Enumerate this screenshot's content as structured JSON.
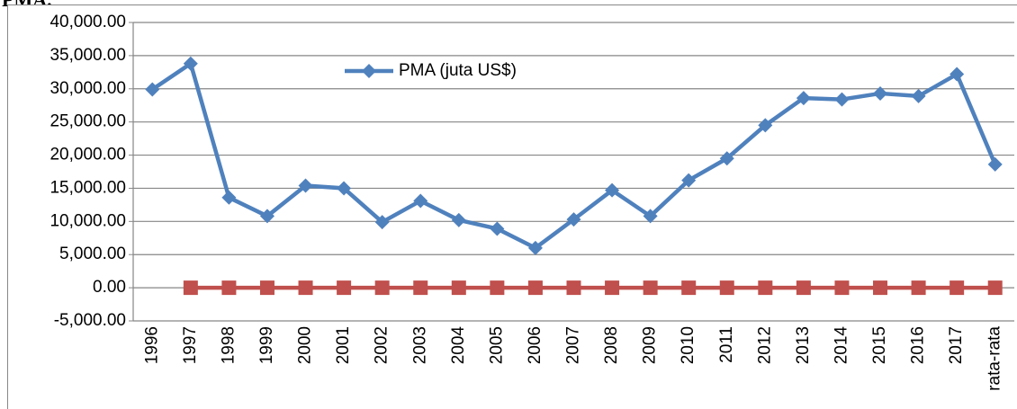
{
  "page_heading": "PMA.",
  "chart_data": {
    "type": "line",
    "categories": [
      "1996",
      "1997",
      "1998",
      "1999",
      "2000",
      "2001",
      "2002",
      "2003",
      "2004",
      "2005",
      "2006",
      "2007",
      "2008",
      "2009",
      "2010",
      "2011",
      "2012",
      "2013",
      "2014",
      "2015",
      "2016",
      "2017",
      "rata-rata"
    ],
    "series": [
      {
        "name": "PMA (juta US$)",
        "color": "#4f81bd",
        "marker": "diamond",
        "values": [
          29900,
          33800,
          13600,
          10800,
          15400,
          15000,
          9900,
          13100,
          10200,
          8900,
          6000,
          10300,
          14700,
          10800,
          16200,
          19500,
          24500,
          28600,
          28400,
          29300,
          28900,
          32200,
          18600
        ]
      },
      {
        "color": "#c0504d",
        "marker": "square",
        "values": [
          null,
          0,
          0,
          0,
          0,
          0,
          0,
          0,
          0,
          0,
          0,
          0,
          0,
          0,
          0,
          0,
          0,
          0,
          0,
          0,
          0,
          0,
          0
        ]
      }
    ],
    "ylim": [
      -5000,
      40000
    ],
    "yticks": [
      {
        "value": -5000,
        "label": "-5,000.00"
      },
      {
        "value": 0,
        "label": "0.00"
      },
      {
        "value": 5000,
        "label": "5,000.00"
      },
      {
        "value": 10000,
        "label": "10,000.00"
      },
      {
        "value": 15000,
        "label": "15,000.00"
      },
      {
        "value": 20000,
        "label": "20,000.00"
      },
      {
        "value": 25000,
        "label": "25,000.00"
      },
      {
        "value": 30000,
        "label": "30,000.00"
      },
      {
        "value": 35000,
        "label": "35,000.00"
      },
      {
        "value": 40000,
        "label": "40,000.00"
      }
    ],
    "grid": true,
    "legend": "top"
  }
}
